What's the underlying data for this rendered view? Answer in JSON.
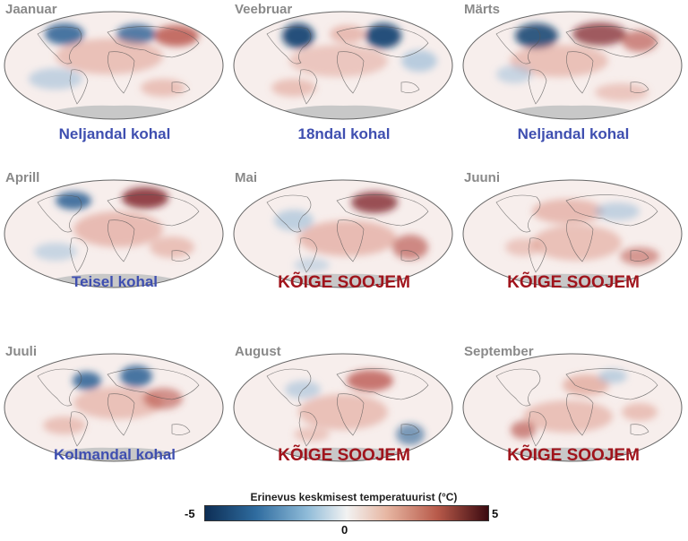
{
  "panels": [
    {
      "month": "Jaanuar",
      "rank": "Neljandal kohal",
      "rank_style": "blue"
    },
    {
      "month": "Veebruar",
      "rank": "18ndal kohal",
      "rank_style": "blue"
    },
    {
      "month": "Märts",
      "rank": "Neljandal kohal",
      "rank_style": "blue"
    },
    {
      "month": "Aprill",
      "rank": "Teisel kohal",
      "rank_style": "blue"
    },
    {
      "month": "Mai",
      "rank": "KÕIGE SOOJEM",
      "rank_style": "red"
    },
    {
      "month": "Juuni",
      "rank": "KÕIGE SOOJEM",
      "rank_style": "red"
    },
    {
      "month": "Juuli",
      "rank": "Kolmandal kohal",
      "rank_style": "blue"
    },
    {
      "month": "August",
      "rank": "KÕIGE SOOJEM",
      "rank_style": "red"
    },
    {
      "month": "September",
      "rank": "KÕIGE SOOJEM",
      "rank_style": "red"
    }
  ],
  "colorbar": {
    "title": "Erinevus keskmisest temperatuurist (°C)",
    "min_label": "-5",
    "mid_label": "0",
    "max_label": "5",
    "colors": [
      "#0d2e55",
      "#2f6c9f",
      "#f2f2f2",
      "#b85a4a",
      "#3b0a10"
    ]
  },
  "colors": {
    "rank_blue": "#3f4fb0",
    "rank_red": "#a0141c",
    "month_label": "#8a8a8a",
    "antarctica": "#c8c8c8"
  }
}
